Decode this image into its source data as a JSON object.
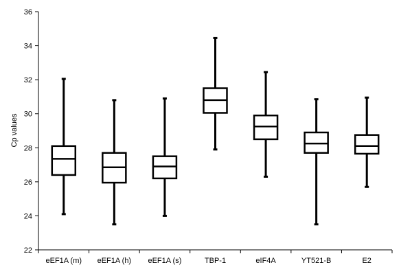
{
  "chart_data": {
    "type": "boxplot",
    "title": "",
    "xlabel": "",
    "ylabel": "Cp values",
    "ylim": [
      22,
      36
    ],
    "yticks": [
      22,
      24,
      26,
      28,
      30,
      32,
      34,
      36
    ],
    "ytick_labels": [
      "22",
      "24",
      "26",
      "28",
      "30",
      "32",
      "34",
      "36"
    ],
    "grid": false,
    "legend": "none",
    "categories": [
      "eEF1A (m)",
      "eEF1A (h)",
      "eEF1A (s)",
      "TBP-1",
      "eIF4A",
      "YT521-B",
      "E2"
    ],
    "boxes": [
      {
        "min": 24.1,
        "q1": 26.4,
        "median": 27.35,
        "q3": 28.1,
        "max": 32.05
      },
      {
        "min": 23.5,
        "q1": 25.95,
        "median": 26.85,
        "q3": 27.7,
        "max": 30.8
      },
      {
        "min": 24.0,
        "q1": 26.2,
        "median": 26.9,
        "q3": 27.5,
        "max": 30.9
      },
      {
        "min": 27.9,
        "q1": 30.05,
        "median": 30.8,
        "q3": 31.5,
        "max": 34.45
      },
      {
        "min": 26.3,
        "q1": 28.5,
        "median": 29.25,
        "q3": 29.9,
        "max": 32.45
      },
      {
        "min": 23.5,
        "q1": 27.7,
        "median": 28.25,
        "q3": 28.9,
        "max": 30.85
      },
      {
        "min": 25.7,
        "q1": 27.65,
        "median": 28.1,
        "q3": 28.75,
        "max": 30.95
      }
    ],
    "colors": {
      "box": "#000000",
      "axis": "#000000",
      "background": "#ffffff"
    }
  }
}
